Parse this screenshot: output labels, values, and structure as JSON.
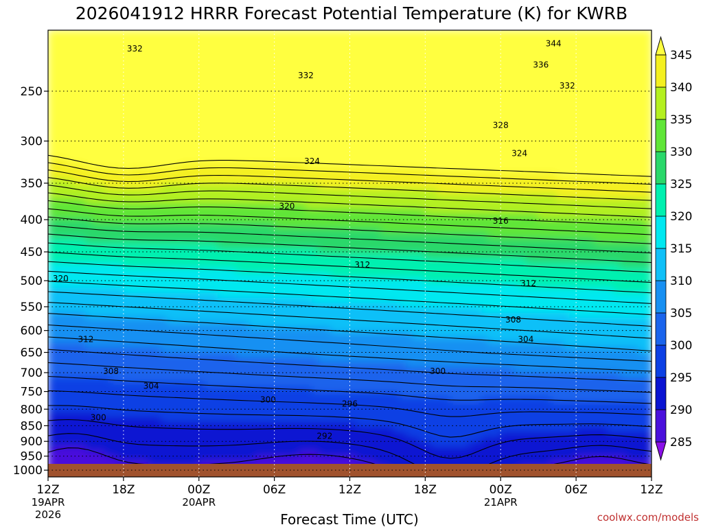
{
  "chart_data": {
    "type": "heatmap",
    "title": "2026041912 HRRR Forecast Potential Temperature (K) for KWRB",
    "xlabel": "Forecast Time (UTC)",
    "ylabel": "",
    "credit": "coolwx.com/models",
    "x_range_hours": [
      0,
      48
    ],
    "x_ticks": [
      {
        "hour": 0,
        "label": "12Z",
        "date": "19APR",
        "year": "2026"
      },
      {
        "hour": 6,
        "label": "18Z",
        "date": "",
        "year": ""
      },
      {
        "hour": 12,
        "label": "00Z",
        "date": "20APR",
        "year": ""
      },
      {
        "hour": 18,
        "label": "06Z",
        "date": "",
        "year": ""
      },
      {
        "hour": 24,
        "label": "12Z",
        "date": "",
        "year": ""
      },
      {
        "hour": 30,
        "label": "18Z",
        "date": "",
        "year": ""
      },
      {
        "hour": 36,
        "label": "00Z",
        "date": "21APR",
        "year": ""
      },
      {
        "hour": 42,
        "label": "06Z",
        "date": "",
        "year": ""
      },
      {
        "hour": 48,
        "label": "12Z",
        "date": "",
        "year": ""
      }
    ],
    "y_scale": "log-pressure",
    "y_range_hPa": [
      1025,
      200
    ],
    "y_ticks": [
      250,
      300,
      350,
      400,
      450,
      500,
      550,
      600,
      650,
      700,
      750,
      800,
      850,
      900,
      950,
      1000
    ],
    "grid": true,
    "colorbar": {
      "levels": [
        285,
        290,
        295,
        300,
        305,
        310,
        315,
        320,
        325,
        330,
        335,
        340,
        345
      ],
      "colors": [
        "#8a10e8",
        "#4a10dc",
        "#0a14d2",
        "#0c40e4",
        "#1a64ec",
        "#1890f2",
        "#10c0f8",
        "#00e8f0",
        "#00f0b0",
        "#2ad86a",
        "#60e638",
        "#b4f020",
        "#f4f020",
        "#ffff40"
      ]
    },
    "contour_labels": [
      {
        "text": "344",
        "hour": 40.2,
        "p": 210
      },
      {
        "text": "336",
        "hour": 39.2,
        "p": 227
      },
      {
        "text": "332",
        "hour": 6.9,
        "p": 214
      },
      {
        "text": "332",
        "hour": 20.5,
        "p": 236
      },
      {
        "text": "332",
        "hour": 41.3,
        "p": 245
      },
      {
        "text": "328",
        "hour": 36.0,
        "p": 283
      },
      {
        "text": "324",
        "hour": 21.0,
        "p": 323
      },
      {
        "text": "324",
        "hour": 37.5,
        "p": 314
      },
      {
        "text": "320",
        "hour": 19.0,
        "p": 381
      },
      {
        "text": "320",
        "hour": 1.0,
        "p": 496
      },
      {
        "text": "316",
        "hour": 36.0,
        "p": 402
      },
      {
        "text": "312",
        "hour": 25.0,
        "p": 472
      },
      {
        "text": "312",
        "hour": 38.2,
        "p": 505
      },
      {
        "text": "312",
        "hour": 3.0,
        "p": 620
      },
      {
        "text": "308",
        "hour": 37.0,
        "p": 577
      },
      {
        "text": "308",
        "hour": 5.0,
        "p": 696
      },
      {
        "text": "304",
        "hour": 38.0,
        "p": 620
      },
      {
        "text": "304",
        "hour": 8.2,
        "p": 735
      },
      {
        "text": "300",
        "hour": 31.0,
        "p": 696
      },
      {
        "text": "300",
        "hour": 17.5,
        "p": 773
      },
      {
        "text": "300",
        "hour": 4.0,
        "p": 825
      },
      {
        "text": "296",
        "hour": 24.0,
        "p": 785
      },
      {
        "text": "292",
        "hour": 22.0,
        "p": 883
      }
    ]
  }
}
